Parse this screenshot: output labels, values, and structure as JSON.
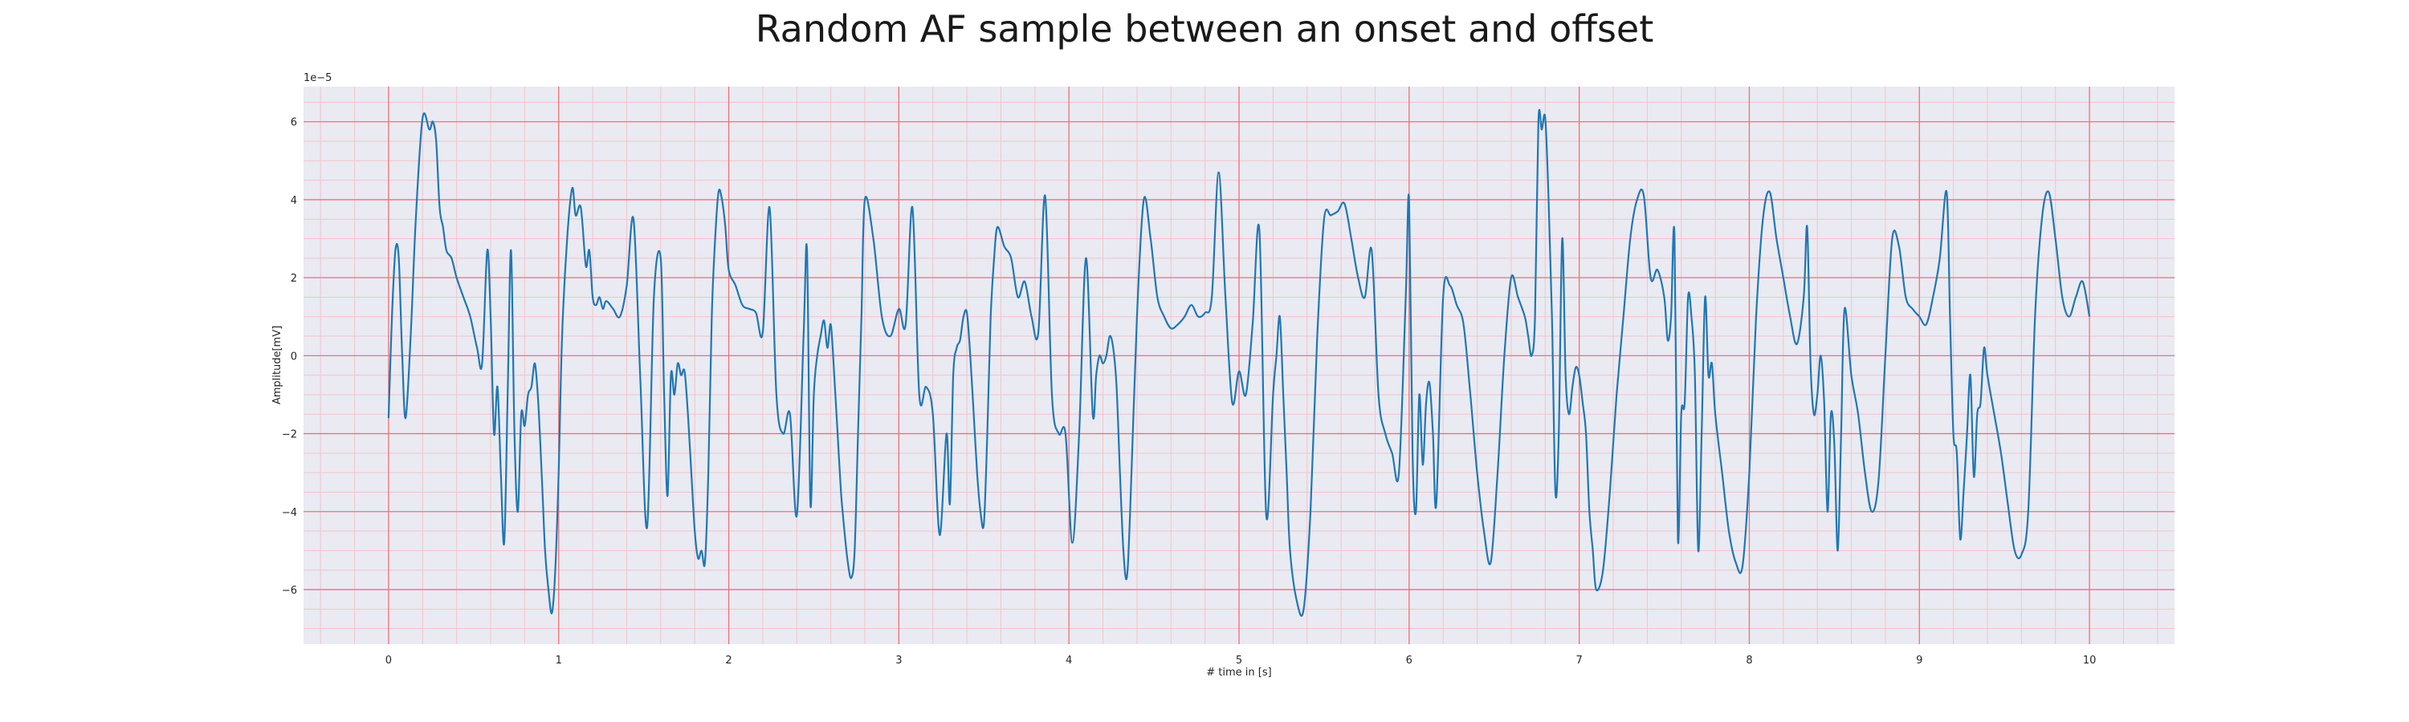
{
  "chart_data": {
    "type": "line",
    "title": "Random AF sample between an onset and offset",
    "xlabel": "# time in [s]",
    "ylabel": "Amplitude[mV]",
    "y_offset_label": "1e−5",
    "xlim": [
      -0.5,
      10.5
    ],
    "ylim": [
      -7.4e-05,
      6.9e-05
    ],
    "x_ticks": [
      0,
      1,
      2,
      3,
      4,
      5,
      6,
      7,
      8,
      9,
      10
    ],
    "x_tick_labels": [
      "0",
      "1",
      "2",
      "3",
      "4",
      "5",
      "6",
      "7",
      "8",
      "9",
      "10"
    ],
    "y_ticks": [
      -6e-05,
      -4e-05,
      -2e-05,
      0,
      2e-05,
      4e-05,
      6e-05
    ],
    "y_tick_labels": [
      "−6",
      "−4",
      "−2",
      "0",
      "2",
      "4",
      "6"
    ],
    "grid": {
      "major": true,
      "minor": true
    },
    "colors": {
      "background": "#eaeaf2",
      "line": "#1f77b4",
      "major_grid": "#f07070",
      "minor_grid": "#f3c4c8"
    },
    "series": [
      {
        "x": [
          0.0,
          0.02,
          0.04,
          0.06,
          0.08,
          0.1,
          0.13,
          0.16,
          0.2,
          0.24,
          0.26,
          0.28,
          0.3,
          0.32,
          0.34,
          0.37,
          0.4,
          0.44,
          0.48,
          0.52,
          0.55,
          0.58,
          0.6,
          0.62,
          0.64,
          0.66,
          0.68,
          0.7,
          0.72,
          0.74,
          0.76,
          0.78,
          0.8,
          0.82,
          0.84,
          0.86,
          0.88,
          0.9,
          0.92,
          0.94,
          0.96,
          0.98,
          1.0,
          1.02,
          1.05,
          1.08,
          1.1,
          1.13,
          1.16,
          1.18,
          1.2,
          1.22,
          1.24,
          1.26,
          1.28,
          1.32,
          1.36,
          1.4,
          1.44,
          1.48,
          1.52,
          1.56,
          1.6,
          1.62,
          1.64,
          1.66,
          1.68,
          1.7,
          1.72,
          1.74,
          1.76,
          1.78,
          1.8,
          1.82,
          1.84,
          1.86,
          1.88,
          1.9,
          1.92,
          1.94,
          1.96,
          1.98,
          2.0,
          2.04,
          2.08,
          2.12,
          2.16,
          2.2,
          2.24,
          2.28,
          2.32,
          2.36,
          2.4,
          2.44,
          2.46,
          2.48,
          2.5,
          2.52,
          2.54,
          2.56,
          2.58,
          2.6,
          2.62,
          2.64,
          2.66,
          2.68,
          2.7,
          2.72,
          2.74,
          2.76,
          2.78,
          2.8,
          2.85,
          2.9,
          2.95,
          3.0,
          3.04,
          3.08,
          3.12,
          3.16,
          3.2,
          3.24,
          3.28,
          3.3,
          3.32,
          3.34,
          3.36,
          3.38,
          3.4,
          3.42,
          3.44,
          3.46,
          3.48,
          3.5,
          3.52,
          3.54,
          3.56,
          3.58,
          3.62,
          3.66,
          3.7,
          3.74,
          3.78,
          3.82,
          3.86,
          3.9,
          3.94,
          3.98,
          4.02,
          4.06,
          4.1,
          4.14,
          4.16,
          4.18,
          4.2,
          4.22,
          4.24,
          4.26,
          4.28,
          4.3,
          4.32,
          4.34,
          4.36,
          4.4,
          4.44,
          4.48,
          4.52,
          4.56,
          4.6,
          4.64,
          4.68,
          4.72,
          4.76,
          4.8,
          4.84,
          4.88,
          4.92,
          4.96,
          5.0,
          5.04,
          5.08,
          5.12,
          5.16,
          5.2,
          5.22,
          5.24,
          5.26,
          5.28,
          5.3,
          5.34,
          5.38,
          5.42,
          5.46,
          5.5,
          5.54,
          5.58,
          5.62,
          5.66,
          5.7,
          5.74,
          5.78,
          5.82,
          5.86,
          5.9,
          5.94,
          5.98,
          6.0,
          6.02,
          6.04,
          6.06,
          6.08,
          6.1,
          6.12,
          6.14,
          6.16,
          6.2,
          6.24,
          6.28,
          6.32,
          6.36,
          6.4,
          6.44,
          6.48,
          6.52,
          6.56,
          6.6,
          6.64,
          6.68,
          6.7,
          6.72,
          6.74,
          6.76,
          6.78,
          6.8,
          6.82,
          6.84,
          6.86,
          6.88,
          6.9,
          6.92,
          6.94,
          6.96,
          6.98,
          7.0,
          7.02,
          7.04,
          7.06,
          7.08,
          7.1,
          7.14,
          7.18,
          7.22,
          7.26,
          7.3,
          7.34,
          7.38,
          7.42,
          7.46,
          7.5,
          7.52,
          7.54,
          7.56,
          7.58,
          7.6,
          7.62,
          7.64,
          7.66,
          7.68,
          7.7,
          7.72,
          7.74,
          7.76,
          7.78,
          7.8,
          7.84,
          7.88,
          7.92,
          7.96,
          8.0,
          8.04,
          8.08,
          8.12,
          8.16,
          8.2,
          8.24,
          8.28,
          8.32,
          8.34,
          8.36,
          8.38,
          8.4,
          8.42,
          8.44,
          8.46,
          8.48,
          8.5,
          8.52,
          8.54,
          8.56,
          8.6,
          8.64,
          8.68,
          8.72,
          8.76,
          8.8,
          8.84,
          8.88,
          8.92,
          8.96,
          9.0,
          9.04,
          9.08,
          9.12,
          9.16,
          9.18,
          9.2,
          9.22,
          9.24,
          9.26,
          9.28,
          9.3,
          9.32,
          9.34,
          9.36,
          9.38,
          9.4,
          9.44,
          9.48,
          9.52,
          9.56,
          9.6,
          9.64,
          9.68,
          9.72,
          9.76,
          9.8,
          9.84,
          9.88,
          9.92,
          9.96,
          10.0
        ],
        "y": [
          -1.6,
          1.0,
          2.7,
          2.5,
          0.0,
          -1.6,
          0.5,
          3.5,
          6.1,
          5.8,
          6.0,
          5.5,
          3.8,
          3.3,
          2.7,
          2.5,
          2.0,
          1.5,
          1.0,
          0.2,
          -0.2,
          2.7,
          1.0,
          -2.0,
          -0.8,
          -3.0,
          -4.8,
          -1.0,
          2.7,
          -2.0,
          -4.0,
          -1.5,
          -1.8,
          -1.0,
          -0.8,
          -0.2,
          -1.2,
          -3.0,
          -5.0,
          -6.0,
          -6.6,
          -5.5,
          -3.0,
          0.5,
          3.0,
          4.3,
          3.6,
          3.8,
          2.3,
          2.7,
          1.5,
          1.3,
          1.5,
          1.2,
          1.4,
          1.2,
          1.0,
          1.8,
          3.5,
          -0.6,
          -4.4,
          1.5,
          2.5,
          -1.0,
          -3.6,
          -0.5,
          -1.0,
          -0.2,
          -0.5,
          -0.4,
          -1.5,
          -3.0,
          -4.5,
          -5.2,
          -5.0,
          -5.3,
          -3.0,
          1.0,
          3.0,
          4.2,
          4.0,
          3.3,
          2.2,
          1.8,
          1.3,
          1.2,
          1.1,
          0.6,
          3.8,
          -1.0,
          -2.0,
          -1.5,
          -4.1,
          0.5,
          2.7,
          -3.8,
          -1.0,
          0.0,
          0.5,
          0.9,
          0.2,
          0.8,
          -0.5,
          -2.0,
          -3.5,
          -4.5,
          -5.3,
          -5.7,
          -5.0,
          -2.0,
          1.0,
          4.0,
          3.0,
          1.0,
          0.5,
          1.2,
          0.8,
          3.8,
          -1.0,
          -0.8,
          -1.5,
          -4.6,
          -2.0,
          -3.8,
          -0.5,
          0.2,
          0.4,
          1.0,
          1.1,
          0.0,
          -1.5,
          -3.0,
          -4.0,
          -4.3,
          -2.0,
          1.0,
          2.5,
          3.3,
          2.8,
          2.5,
          1.5,
          1.9,
          1.0,
          0.6,
          4.1,
          -1.0,
          -2.0,
          -2.0,
          -4.8,
          -2.0,
          2.5,
          -1.5,
          -0.5,
          0.0,
          -0.2,
          0.0,
          0.5,
          0.2,
          -0.8,
          -3.0,
          -5.0,
          -5.7,
          -4.0,
          1.0,
          4.0,
          3.0,
          1.5,
          1.0,
          0.7,
          0.8,
          1.0,
          1.3,
          1.0,
          1.1,
          1.5,
          4.7,
          1.5,
          -1.2,
          -0.4,
          -1.0,
          0.8,
          3.2,
          -4.1,
          -1.0,
          0.0,
          1.0,
          -1.0,
          -3.0,
          -5.0,
          -6.3,
          -6.5,
          -4.0,
          0.5,
          3.5,
          3.6,
          3.7,
          3.9,
          3.0,
          2.0,
          1.5,
          2.7,
          -1.0,
          -2.0,
          -2.5,
          -3.0,
          1.5,
          4.0,
          -2.5,
          -4.0,
          -1.0,
          -2.8,
          -1.2,
          -0.7,
          -2.0,
          -3.8,
          1.5,
          1.8,
          1.3,
          0.8,
          -1.0,
          -3.0,
          -4.5,
          -5.3,
          -3.0,
          0.0,
          2.0,
          1.5,
          1.0,
          0.5,
          0.0,
          1.0,
          6.0,
          5.8,
          6.1,
          4.0,
          1.0,
          -3.5,
          -2.0,
          3.0,
          -0.5,
          -1.5,
          -0.8,
          -0.3,
          -0.5,
          -1.2,
          -2.0,
          -4.0,
          -5.0,
          -6.0,
          -5.5,
          -3.5,
          -1.0,
          1.0,
          3.0,
          4.0,
          4.1,
          2.0,
          2.2,
          1.5,
          0.4,
          1.0,
          3.1,
          -4.7,
          -1.5,
          -1.2,
          1.5,
          1.0,
          -0.5,
          -5.0,
          -2.0,
          1.5,
          -0.5,
          -0.2,
          -1.5,
          -3.0,
          -4.5,
          -5.3,
          -5.4,
          -3.0,
          1.0,
          3.5,
          4.2,
          3.0,
          2.0,
          1.0,
          0.3,
          1.5,
          3.3,
          -0.2,
          -1.5,
          -1.0,
          0.0,
          -1.2,
          -4.0,
          -1.5,
          -2.3,
          -5.0,
          -2.0,
          1.2,
          -0.5,
          -1.5,
          -3.0,
          -4.0,
          -3.2,
          0.0,
          3.0,
          2.8,
          1.5,
          1.2,
          1.0,
          0.8,
          1.5,
          2.5,
          4.2,
          1.0,
          -2.0,
          -2.5,
          -4.7,
          -3.5,
          -2.0,
          -0.5,
          -3.1,
          -1.5,
          -1.2,
          0.2,
          -0.5,
          -1.5,
          -2.5,
          -3.8,
          -5.0,
          -5.1,
          -4.0,
          1.0,
          3.5,
          4.2,
          3.0,
          1.5,
          1.0,
          1.5,
          1.9,
          1.0
        ]
      }
    ]
  }
}
